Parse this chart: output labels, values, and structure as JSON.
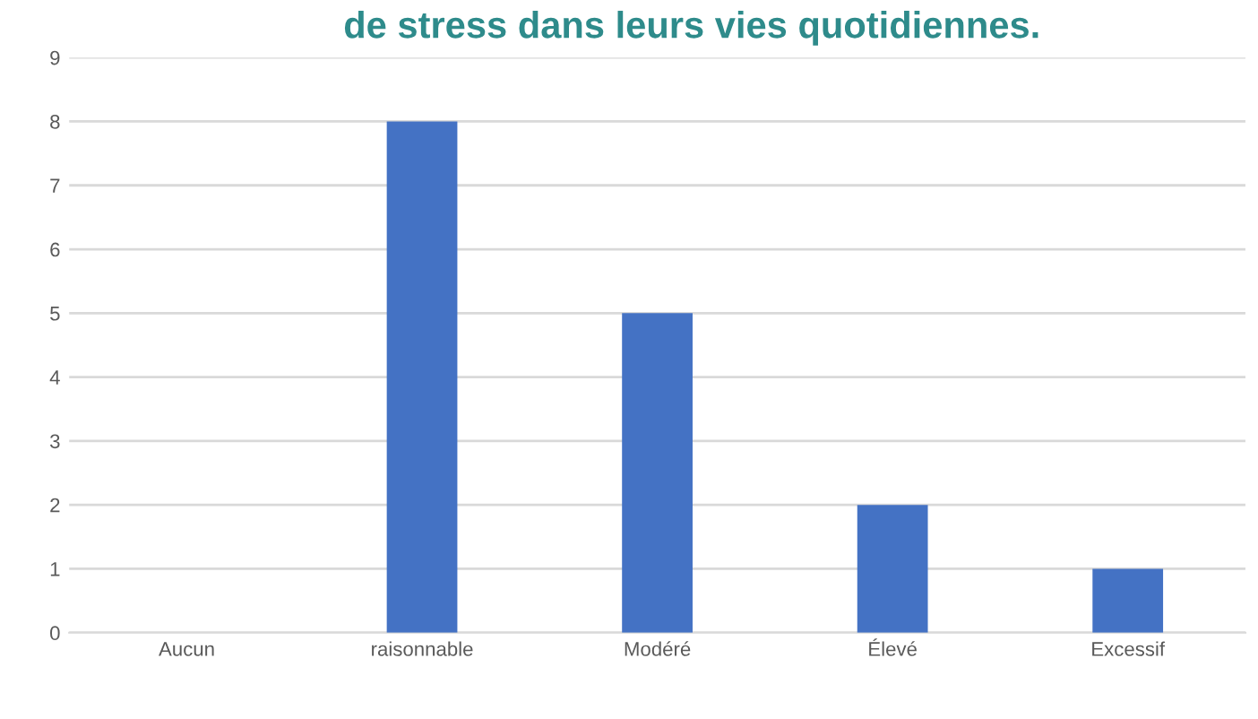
{
  "chart_data": {
    "type": "bar",
    "title": "de stress dans leurs vies quotidiennes.",
    "categories": [
      "Aucun",
      "raisonnable",
      "Modéré",
      "Élevé",
      "Excessif"
    ],
    "values": [
      0,
      8,
      5,
      2,
      1
    ],
    "color": "#4472c4",
    "ylim": [
      0,
      9
    ],
    "yticks": [
      0,
      1,
      2,
      3,
      4,
      5,
      6,
      7,
      8,
      9
    ],
    "grid": "y",
    "legend": false
  }
}
